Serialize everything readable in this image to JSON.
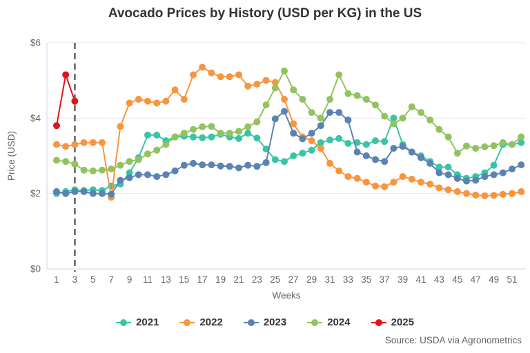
{
  "title": "Avocado Prices by History (USD per KG) in the US",
  "source_note": "Source: USDA via Agronometrics",
  "colors": {
    "grid": "#e6e6e6",
    "axis_line": "#ccd6eb",
    "tick_label": "#666666",
    "axis_title": "#666666",
    "title_text": "#333333",
    "plotline": "#666666"
  },
  "chart_data": {
    "type": "line",
    "title": "Avocado Prices by History (USD per KG) in the US",
    "xlabel": "Weeks",
    "ylabel": "Price (USD)",
    "ylim": [
      0,
      6
    ],
    "y_ticks": [
      0,
      2,
      4,
      6
    ],
    "y_tick_labels": [
      "$0",
      "$2",
      "$4",
      "$6"
    ],
    "x_tick_labels": [
      1,
      3,
      5,
      7,
      9,
      11,
      13,
      15,
      17,
      19,
      21,
      23,
      25,
      27,
      29,
      31,
      33,
      35,
      37,
      39,
      41,
      43,
      45,
      47,
      49,
      51
    ],
    "weeks_start": 1,
    "weeks_end": 52,
    "grid": true,
    "legend_position": "bottom",
    "plotline": {
      "week": 3,
      "style": "dashed",
      "color": "#666666"
    },
    "series": [
      {
        "name": "2021",
        "color": "#38c5a6",
        "values": [
          2.0,
          2.05,
          2.1,
          2.08,
          2.1,
          2.08,
          2.2,
          2.25,
          2.55,
          2.95,
          3.55,
          3.55,
          3.4,
          3.5,
          3.52,
          3.5,
          3.48,
          3.5,
          3.57,
          3.5,
          3.46,
          3.6,
          3.47,
          3.18,
          2.9,
          2.85,
          3.0,
          3.07,
          3.15,
          3.35,
          3.42,
          3.46,
          3.33,
          3.35,
          3.3,
          3.4,
          3.38,
          4.0,
          3.3,
          3.1,
          3.0,
          2.85,
          2.7,
          2.7,
          2.5,
          2.4,
          2.45,
          2.55,
          2.75,
          3.3,
          3.3,
          3.35
        ]
      },
      {
        "name": "2022",
        "color": "#f8953d",
        "values": [
          3.3,
          3.25,
          3.3,
          3.35,
          3.35,
          3.35,
          1.9,
          3.78,
          4.4,
          4.5,
          4.45,
          4.4,
          4.45,
          4.75,
          4.5,
          5.15,
          5.35,
          5.2,
          5.1,
          5.1,
          5.15,
          4.85,
          4.9,
          5.0,
          4.95,
          4.5,
          3.85,
          3.5,
          3.4,
          3.2,
          2.8,
          2.6,
          2.45,
          2.4,
          2.3,
          2.2,
          2.18,
          2.3,
          2.45,
          2.38,
          2.3,
          2.25,
          2.15,
          2.1,
          2.05,
          2.0,
          1.96,
          1.94,
          1.95,
          1.98,
          2.0,
          2.05
        ]
      },
      {
        "name": "2023",
        "color": "#5a83b3",
        "values": [
          2.05,
          2.0,
          2.05,
          2.05,
          2.0,
          2.0,
          1.98,
          2.35,
          2.42,
          2.5,
          2.5,
          2.45,
          2.5,
          2.6,
          2.75,
          2.8,
          2.76,
          2.76,
          2.73,
          2.72,
          2.68,
          2.75,
          2.72,
          2.82,
          3.98,
          4.18,
          3.6,
          3.45,
          3.6,
          3.8,
          4.15,
          4.15,
          3.95,
          3.1,
          3.0,
          2.9,
          2.85,
          3.2,
          3.25,
          3.1,
          2.95,
          2.8,
          2.55,
          2.5,
          2.4,
          2.33,
          2.35,
          2.45,
          2.5,
          2.55,
          2.65,
          2.76
        ]
      },
      {
        "name": "2024",
        "color": "#92c35e",
        "values": [
          2.88,
          2.85,
          2.78,
          2.62,
          2.6,
          2.62,
          2.65,
          2.75,
          2.85,
          2.9,
          3.05,
          3.15,
          3.3,
          3.5,
          3.6,
          3.7,
          3.77,
          3.78,
          3.6,
          3.6,
          3.65,
          3.77,
          3.9,
          4.35,
          4.8,
          5.25,
          4.75,
          4.5,
          4.15,
          4.0,
          4.5,
          5.15,
          4.65,
          4.6,
          4.5,
          4.35,
          4.05,
          3.85,
          4.0,
          4.3,
          4.15,
          3.95,
          3.7,
          3.5,
          3.07,
          3.26,
          3.2,
          3.24,
          3.27,
          3.35,
          3.3,
          3.5
        ]
      },
      {
        "name": "2025",
        "color": "#e3131b",
        "values": [
          3.8,
          5.15,
          4.45
        ]
      }
    ]
  }
}
